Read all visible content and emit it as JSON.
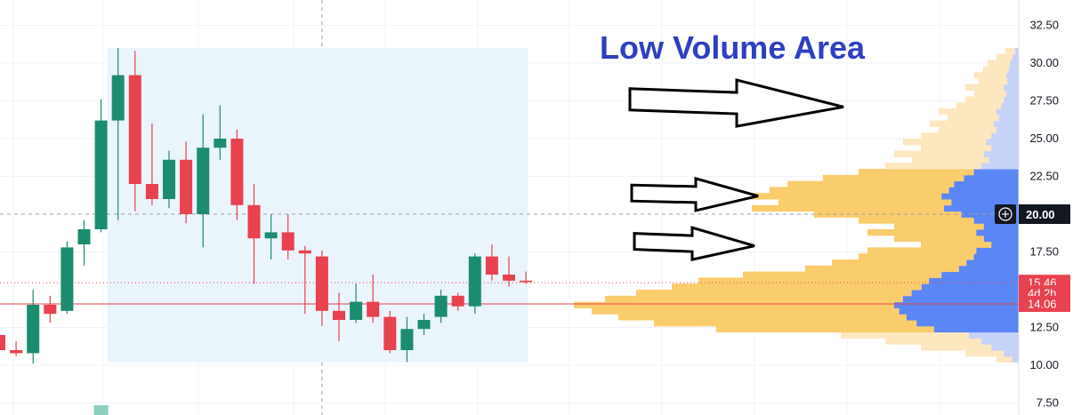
{
  "colors": {
    "up": "#1c8c6e",
    "down": "#e8414f",
    "vp_outside": "#fde7bf",
    "vp_value_area": "#f9cc6c",
    "vp_outside_dark": "#c6d2f7",
    "vp_value_area_dark": "#5b86f5",
    "range_box": "#eaf4fb",
    "title": "#2e3fc2",
    "current_price_badge": "#e8414f",
    "crosshair_badge": "#131722"
  },
  "chart_data": {
    "type": "candlestick",
    "title": "",
    "ylim": [
      6.5,
      33.5
    ],
    "y_ticks": [
      "7.50",
      "10.00",
      "12.50",
      "17.50",
      "22.50",
      "25.00",
      "27.50",
      "30.00",
      "32.50"
    ],
    "candles": [
      {
        "o": 12.0,
        "h": 13.2,
        "l": 10.8,
        "c": 11.0
      },
      {
        "o": 11.0,
        "h": 11.6,
        "l": 10.6,
        "c": 10.8
      },
      {
        "o": 10.8,
        "h": 15.0,
        "l": 10.1,
        "c": 14.0
      },
      {
        "o": 14.0,
        "h": 14.6,
        "l": 12.8,
        "c": 13.4
      },
      {
        "o": 13.6,
        "h": 18.2,
        "l": 13.4,
        "c": 17.8
      },
      {
        "o": 18.0,
        "h": 19.6,
        "l": 16.6,
        "c": 19.0
      },
      {
        "o": 19.0,
        "h": 27.6,
        "l": 18.8,
        "c": 26.2
      },
      {
        "o": 26.2,
        "h": 31.0,
        "l": 19.6,
        "c": 29.2
      },
      {
        "o": 29.2,
        "h": 30.8,
        "l": 20.2,
        "c": 22.0
      },
      {
        "o": 22.0,
        "h": 26.0,
        "l": 20.6,
        "c": 21.0
      },
      {
        "o": 21.0,
        "h": 24.2,
        "l": 20.4,
        "c": 23.6
      },
      {
        "o": 23.6,
        "h": 24.8,
        "l": 19.4,
        "c": 20.0
      },
      {
        "o": 20.0,
        "h": 26.6,
        "l": 17.8,
        "c": 24.4
      },
      {
        "o": 24.4,
        "h": 27.2,
        "l": 23.6,
        "c": 25.0
      },
      {
        "o": 25.0,
        "h": 25.6,
        "l": 19.6,
        "c": 20.6
      },
      {
        "o": 20.6,
        "h": 22.0,
        "l": 15.4,
        "c": 18.4
      },
      {
        "o": 18.4,
        "h": 20.0,
        "l": 17.0,
        "c": 18.8
      },
      {
        "o": 18.8,
        "h": 20.0,
        "l": 17.0,
        "c": 17.6
      },
      {
        "o": 17.6,
        "h": 17.9,
        "l": 13.4,
        "c": 17.4
      },
      {
        "o": 17.2,
        "h": 17.6,
        "l": 12.6,
        "c": 13.6
      },
      {
        "o": 13.6,
        "h": 14.8,
        "l": 11.6,
        "c": 13.0
      },
      {
        "o": 13.0,
        "h": 15.4,
        "l": 12.8,
        "c": 14.2
      },
      {
        "o": 14.2,
        "h": 16.0,
        "l": 12.8,
        "c": 13.2
      },
      {
        "o": 13.2,
        "h": 13.6,
        "l": 10.8,
        "c": 11.0
      },
      {
        "o": 11.0,
        "h": 13.2,
        "l": 10.2,
        "c": 12.4
      },
      {
        "o": 12.4,
        "h": 13.4,
        "l": 12.0,
        "c": 13.0
      },
      {
        "o": 13.2,
        "h": 15.0,
        "l": 12.8,
        "c": 14.6
      },
      {
        "o": 14.6,
        "h": 14.8,
        "l": 13.6,
        "c": 13.9
      },
      {
        "o": 13.9,
        "h": 17.4,
        "l": 13.4,
        "c": 17.2
      },
      {
        "o": 17.2,
        "h": 18.0,
        "l": 15.6,
        "c": 16.0
      },
      {
        "o": 16.0,
        "h": 17.2,
        "l": 15.2,
        "c": 15.6
      },
      {
        "o": 15.6,
        "h": 16.2,
        "l": 15.4,
        "c": 15.5
      }
    ],
    "volume_bars": [
      {
        "index": 6,
        "value": 1
      }
    ],
    "range_box": {
      "start_index": 7,
      "end_index": 31,
      "top": 31.0,
      "bottom": 10.2
    },
    "volume_profile": {
      "value_area_low": 12.2,
      "value_area_high": 23.0,
      "levels": [
        [
          10.2,
          0.05
        ],
        [
          10.6,
          0.12
        ],
        [
          11.0,
          0.22
        ],
        [
          11.4,
          0.3
        ],
        [
          11.8,
          0.4
        ],
        [
          12.2,
          0.68
        ],
        [
          12.6,
          0.82
        ],
        [
          13.0,
          0.9
        ],
        [
          13.4,
          0.96
        ],
        [
          13.8,
          1.0
        ],
        [
          14.2,
          0.93
        ],
        [
          14.6,
          0.86
        ],
        [
          15.0,
          0.78
        ],
        [
          15.4,
          0.72
        ],
        [
          15.8,
          0.62
        ],
        [
          16.2,
          0.48
        ],
        [
          16.6,
          0.42
        ],
        [
          17.0,
          0.36
        ],
        [
          17.4,
          0.34
        ],
        [
          17.8,
          0.22
        ],
        [
          18.2,
          0.28
        ],
        [
          18.6,
          0.34
        ],
        [
          19.0,
          0.28
        ],
        [
          19.4,
          0.36
        ],
        [
          19.8,
          0.46
        ],
        [
          20.2,
          0.6
        ],
        [
          20.6,
          0.54
        ],
        [
          21.0,
          0.62
        ],
        [
          21.4,
          0.56
        ],
        [
          21.8,
          0.52
        ],
        [
          22.2,
          0.44
        ],
        [
          22.6,
          0.36
        ],
        [
          23.0,
          0.3
        ],
        [
          23.4,
          0.24
        ],
        [
          23.8,
          0.28
        ],
        [
          24.2,
          0.22
        ],
        [
          24.6,
          0.26
        ],
        [
          25.0,
          0.22
        ],
        [
          25.4,
          0.18
        ],
        [
          25.8,
          0.2
        ],
        [
          26.2,
          0.16
        ],
        [
          26.6,
          0.18
        ],
        [
          27.0,
          0.14
        ],
        [
          27.4,
          0.12
        ],
        [
          27.8,
          0.1
        ],
        [
          28.2,
          0.12
        ],
        [
          28.6,
          0.09
        ],
        [
          29.0,
          0.1
        ],
        [
          29.4,
          0.08
        ],
        [
          29.8,
          0.07
        ],
        [
          30.2,
          0.05
        ],
        [
          30.6,
          0.03
        ]
      ]
    },
    "horizontal_lines": [
      {
        "value": 15.46,
        "style": "dotted",
        "color": "#e8414f"
      },
      {
        "value": 14.06,
        "style": "solid",
        "color": "#e8414f"
      },
      {
        "value": 20.0,
        "style": "dashed",
        "color": "#9aa0a6"
      }
    ],
    "crosshair_index": 19,
    "price_badges": [
      {
        "label": "20.00",
        "value": 20.0,
        "kind": "crosshair"
      },
      {
        "label": "15.46",
        "value": 15.46,
        "kind": "price"
      },
      {
        "label": "4d 2h",
        "value": 14.76,
        "kind": "countdown"
      },
      {
        "label": "14.06",
        "value": 14.06,
        "kind": "price"
      }
    ],
    "annotation": {
      "title": "Low Volume Area"
    },
    "arrows": [
      {
        "from": [
          0,
          27.6
        ],
        "to": [
          1,
          27.1
        ]
      },
      {
        "from": [
          0,
          21.4
        ],
        "to": [
          1,
          21.2
        ]
      },
      {
        "from": [
          0,
          18.2
        ],
        "to": [
          1,
          17.9
        ]
      }
    ]
  }
}
